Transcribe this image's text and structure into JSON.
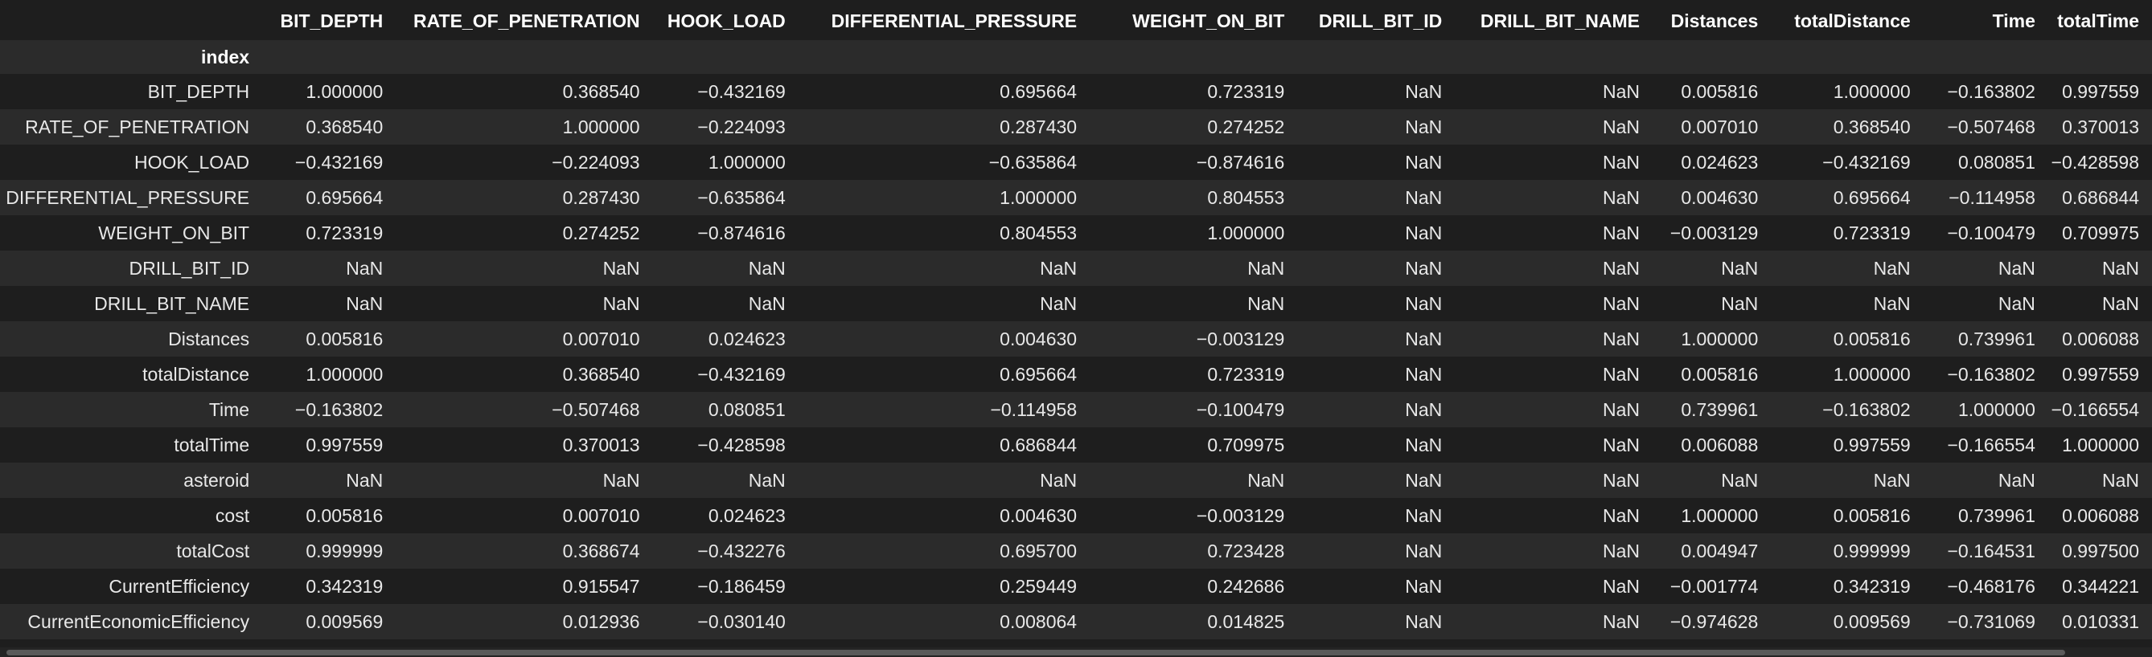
{
  "index_header": "index",
  "columns": [
    "BIT_DEPTH",
    "RATE_OF_PENETRATION",
    "HOOK_LOAD",
    "DIFFERENTIAL_PRESSURE",
    "WEIGHT_ON_BIT",
    "DRILL_BIT_ID",
    "DRILL_BIT_NAME",
    "Distances",
    "totalDistance",
    "Time",
    "totalTime"
  ],
  "rows": [
    {
      "label": "BIT_DEPTH",
      "values": [
        "1.000000",
        "0.368540",
        "−0.432169",
        "0.695664",
        "0.723319",
        "NaN",
        "NaN",
        "0.005816",
        "1.000000",
        "−0.163802",
        "0.997559"
      ]
    },
    {
      "label": "RATE_OF_PENETRATION",
      "values": [
        "0.368540",
        "1.000000",
        "−0.224093",
        "0.287430",
        "0.274252",
        "NaN",
        "NaN",
        "0.007010",
        "0.368540",
        "−0.507468",
        "0.370013"
      ]
    },
    {
      "label": "HOOK_LOAD",
      "values": [
        "−0.432169",
        "−0.224093",
        "1.000000",
        "−0.635864",
        "−0.874616",
        "NaN",
        "NaN",
        "0.024623",
        "−0.432169",
        "0.080851",
        "−0.428598"
      ]
    },
    {
      "label": "DIFFERENTIAL_PRESSURE",
      "values": [
        "0.695664",
        "0.287430",
        "−0.635864",
        "1.000000",
        "0.804553",
        "NaN",
        "NaN",
        "0.004630",
        "0.695664",
        "−0.114958",
        "0.686844"
      ]
    },
    {
      "label": "WEIGHT_ON_BIT",
      "values": [
        "0.723319",
        "0.274252",
        "−0.874616",
        "0.804553",
        "1.000000",
        "NaN",
        "NaN",
        "−0.003129",
        "0.723319",
        "−0.100479",
        "0.709975"
      ]
    },
    {
      "label": "DRILL_BIT_ID",
      "values": [
        "NaN",
        "NaN",
        "NaN",
        "NaN",
        "NaN",
        "NaN",
        "NaN",
        "NaN",
        "NaN",
        "NaN",
        "NaN"
      ]
    },
    {
      "label": "DRILL_BIT_NAME",
      "values": [
        "NaN",
        "NaN",
        "NaN",
        "NaN",
        "NaN",
        "NaN",
        "NaN",
        "NaN",
        "NaN",
        "NaN",
        "NaN"
      ]
    },
    {
      "label": "Distances",
      "values": [
        "0.005816",
        "0.007010",
        "0.024623",
        "0.004630",
        "−0.003129",
        "NaN",
        "NaN",
        "1.000000",
        "0.005816",
        "0.739961",
        "0.006088"
      ]
    },
    {
      "label": "totalDistance",
      "values": [
        "1.000000",
        "0.368540",
        "−0.432169",
        "0.695664",
        "0.723319",
        "NaN",
        "NaN",
        "0.005816",
        "1.000000",
        "−0.163802",
        "0.997559"
      ]
    },
    {
      "label": "Time",
      "values": [
        "−0.163802",
        "−0.507468",
        "0.080851",
        "−0.114958",
        "−0.100479",
        "NaN",
        "NaN",
        "0.739961",
        "−0.163802",
        "1.000000",
        "−0.166554"
      ]
    },
    {
      "label": "totalTime",
      "values": [
        "0.997559",
        "0.370013",
        "−0.428598",
        "0.686844",
        "0.709975",
        "NaN",
        "NaN",
        "0.006088",
        "0.997559",
        "−0.166554",
        "1.000000"
      ]
    },
    {
      "label": "asteroid",
      "values": [
        "NaN",
        "NaN",
        "NaN",
        "NaN",
        "NaN",
        "NaN",
        "NaN",
        "NaN",
        "NaN",
        "NaN",
        "NaN"
      ]
    },
    {
      "label": "cost",
      "values": [
        "0.005816",
        "0.007010",
        "0.024623",
        "0.004630",
        "−0.003129",
        "NaN",
        "NaN",
        "1.000000",
        "0.005816",
        "0.739961",
        "0.006088"
      ]
    },
    {
      "label": "totalCost",
      "values": [
        "0.999999",
        "0.368674",
        "−0.432276",
        "0.695700",
        "0.723428",
        "NaN",
        "NaN",
        "0.004947",
        "0.999999",
        "−0.164531",
        "0.997500"
      ]
    },
    {
      "label": "CurrentEfficiency",
      "values": [
        "0.342319",
        "0.915547",
        "−0.186459",
        "0.259449",
        "0.242686",
        "NaN",
        "NaN",
        "−0.001774",
        "0.342319",
        "−0.468176",
        "0.344221"
      ]
    },
    {
      "label": "CurrentEconomicEfficiency",
      "values": [
        "0.009569",
        "0.012936",
        "−0.030140",
        "0.008064",
        "0.014825",
        "NaN",
        "NaN",
        "−0.974628",
        "0.009569",
        "−0.731069",
        "0.010331"
      ]
    }
  ],
  "colors": {
    "background": "#1e1e1e",
    "stripe": "#2b2b2b",
    "text": "#e8e8e8",
    "header_text": "#ffffff",
    "scrollbar_thumb": "#5a5a5a"
  }
}
